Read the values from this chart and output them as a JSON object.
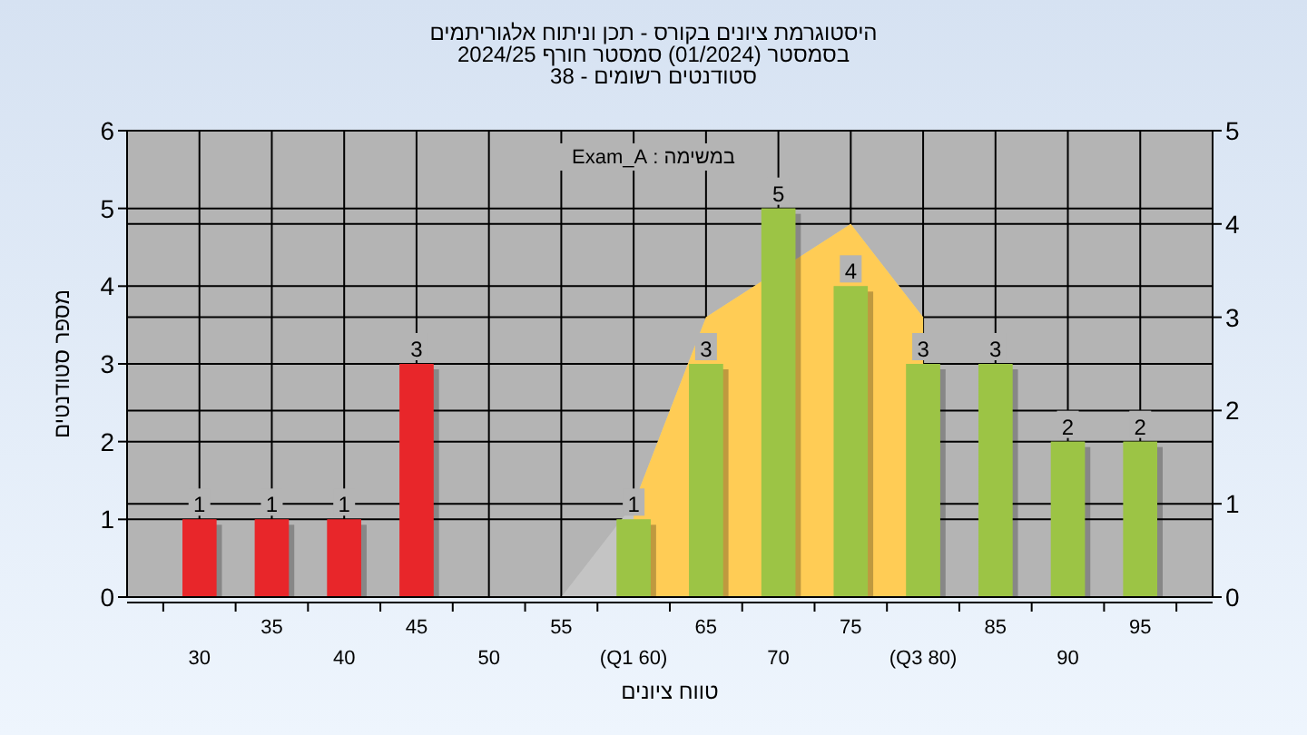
{
  "chart_data": {
    "type": "bar",
    "title": "היסטוגרמת ציונים בקורס - תכן וניתוח אלגוריתמים",
    "subtitle": "בסמסטר  (01/2024)  סמסטר חורף 2024/25\nסטודנטים רשומים - 38",
    "xlabel": "טווח ציונים",
    "ylabel": "מספר סטודנטים",
    "annotations": [
      "במשימה : Exam_A"
    ],
    "categories": [
      "30",
      "35",
      "40",
      "45",
      "50",
      "55",
      "(Q1 60)",
      "65",
      "70",
      "75",
      "(Q3 80)",
      "85",
      "90",
      "95"
    ],
    "series": [
      {
        "type": "area",
        "axis": "y2",
        "color": "#c4c4c4",
        "values": [
          null,
          null,
          null,
          null,
          null,
          0,
          1,
          3,
          null,
          4,
          3,
          null,
          null,
          null
        ]
      },
      {
        "type": "area",
        "axis": "y2",
        "color": "#ffcc55",
        "values": [
          null,
          null,
          null,
          null,
          null,
          null,
          1,
          3,
          null,
          4,
          3,
          null,
          null,
          null
        ]
      },
      {
        "axis": "y",
        "colors": [
          "#e8262a",
          "#e8262a",
          "#e8262a",
          "#e8262a",
          null,
          null,
          "#9cc445",
          "#9cc445",
          "#9cc445",
          "#9cc445",
          "#9cc445",
          "#9cc445",
          "#9cc445",
          "#9cc445"
        ],
        "values": [
          1,
          1,
          1,
          3,
          null,
          null,
          1,
          3,
          5,
          4,
          3,
          3,
          2,
          2
        ],
        "value_labels": [
          "1",
          "1",
          "1",
          "3",
          null,
          null,
          "1",
          "3",
          "5",
          "4",
          "3",
          "3",
          "2",
          "2"
        ]
      }
    ],
    "ylim": [
      0,
      6
    ],
    "yticks": [
      0,
      1,
      2,
      3,
      4,
      5,
      6
    ],
    "y2lim": [
      0,
      5
    ],
    "y2ticks": [
      0,
      1,
      2,
      3,
      4,
      5
    ],
    "grid": true
  }
}
